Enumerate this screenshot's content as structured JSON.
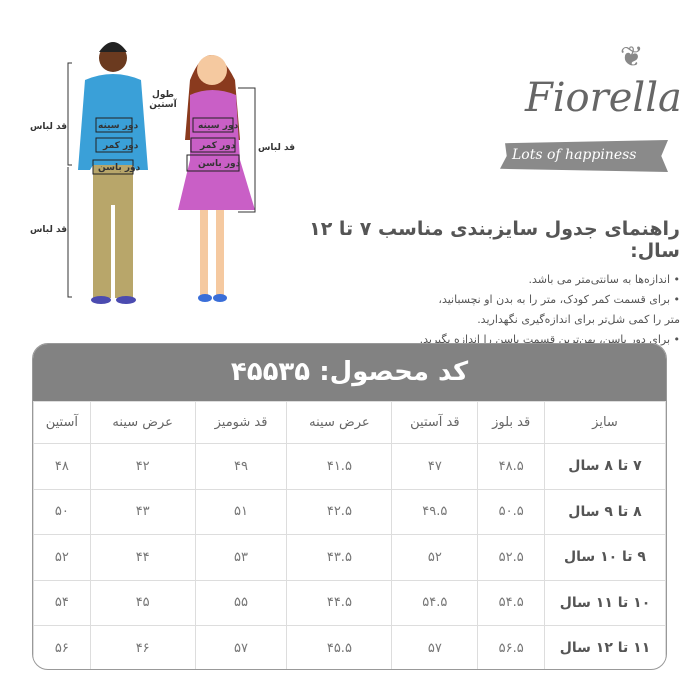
{
  "brand": {
    "name": "Fiorella",
    "tagline": "Lots of happiness"
  },
  "figure_labels": {
    "sleeve_length": "طول آستین",
    "garment_length": "قد لباس",
    "chest": "دور سینه",
    "waist": "دور کمر",
    "hip": "دور باسن"
  },
  "guide": {
    "title": "راهنمای جدول سایزبندی مناسب ۷ تا ۱۲ سال:",
    "lines": [
      "• اندازه‌ها به سانتی‌متر می باشد.",
      "• برای قسمت کمر کودک، متر را به بدن او نچسبانید،",
      "متر را کمی شل‌تر برای اندازه‌گیری نگهدارید.",
      "• برای دور باسن، پهن‌ترین قسمت باسن را اندازه بگیرید."
    ]
  },
  "table": {
    "title": "کد محصول: ۴۵۵۳۵",
    "headers": [
      "سایز",
      "قد بلوز",
      "قد آستین",
      "عرض سینه",
      "قد شومیز",
      "عرض سینه",
      "آستین"
    ],
    "rows": [
      [
        "۷ تا ۸ سال",
        "۴۸.۵",
        "۴۷",
        "۴۱.۵",
        "۴۹",
        "۴۲",
        "۴۸"
      ],
      [
        "۸ تا ۹ سال",
        "۵۰.۵",
        "۴۹.۵",
        "۴۲.۵",
        "۵۱",
        "۴۳",
        "۵۰"
      ],
      [
        "۹ تا ۱۰ سال",
        "۵۲.۵",
        "۵۲",
        "۴۳.۵",
        "۵۳",
        "۴۴",
        "۵۲"
      ],
      [
        "۱۰ تا ۱۱ سال",
        "۵۴.۵",
        "۵۴.۵",
        "۴۴.۵",
        "۵۵",
        "۴۵",
        "۵۴"
      ],
      [
        "۱۱ تا ۱۲ سال",
        "۵۶.۵",
        "۵۷",
        "۴۵.۵",
        "۵۷",
        "۴۶",
        "۵۶"
      ]
    ]
  }
}
